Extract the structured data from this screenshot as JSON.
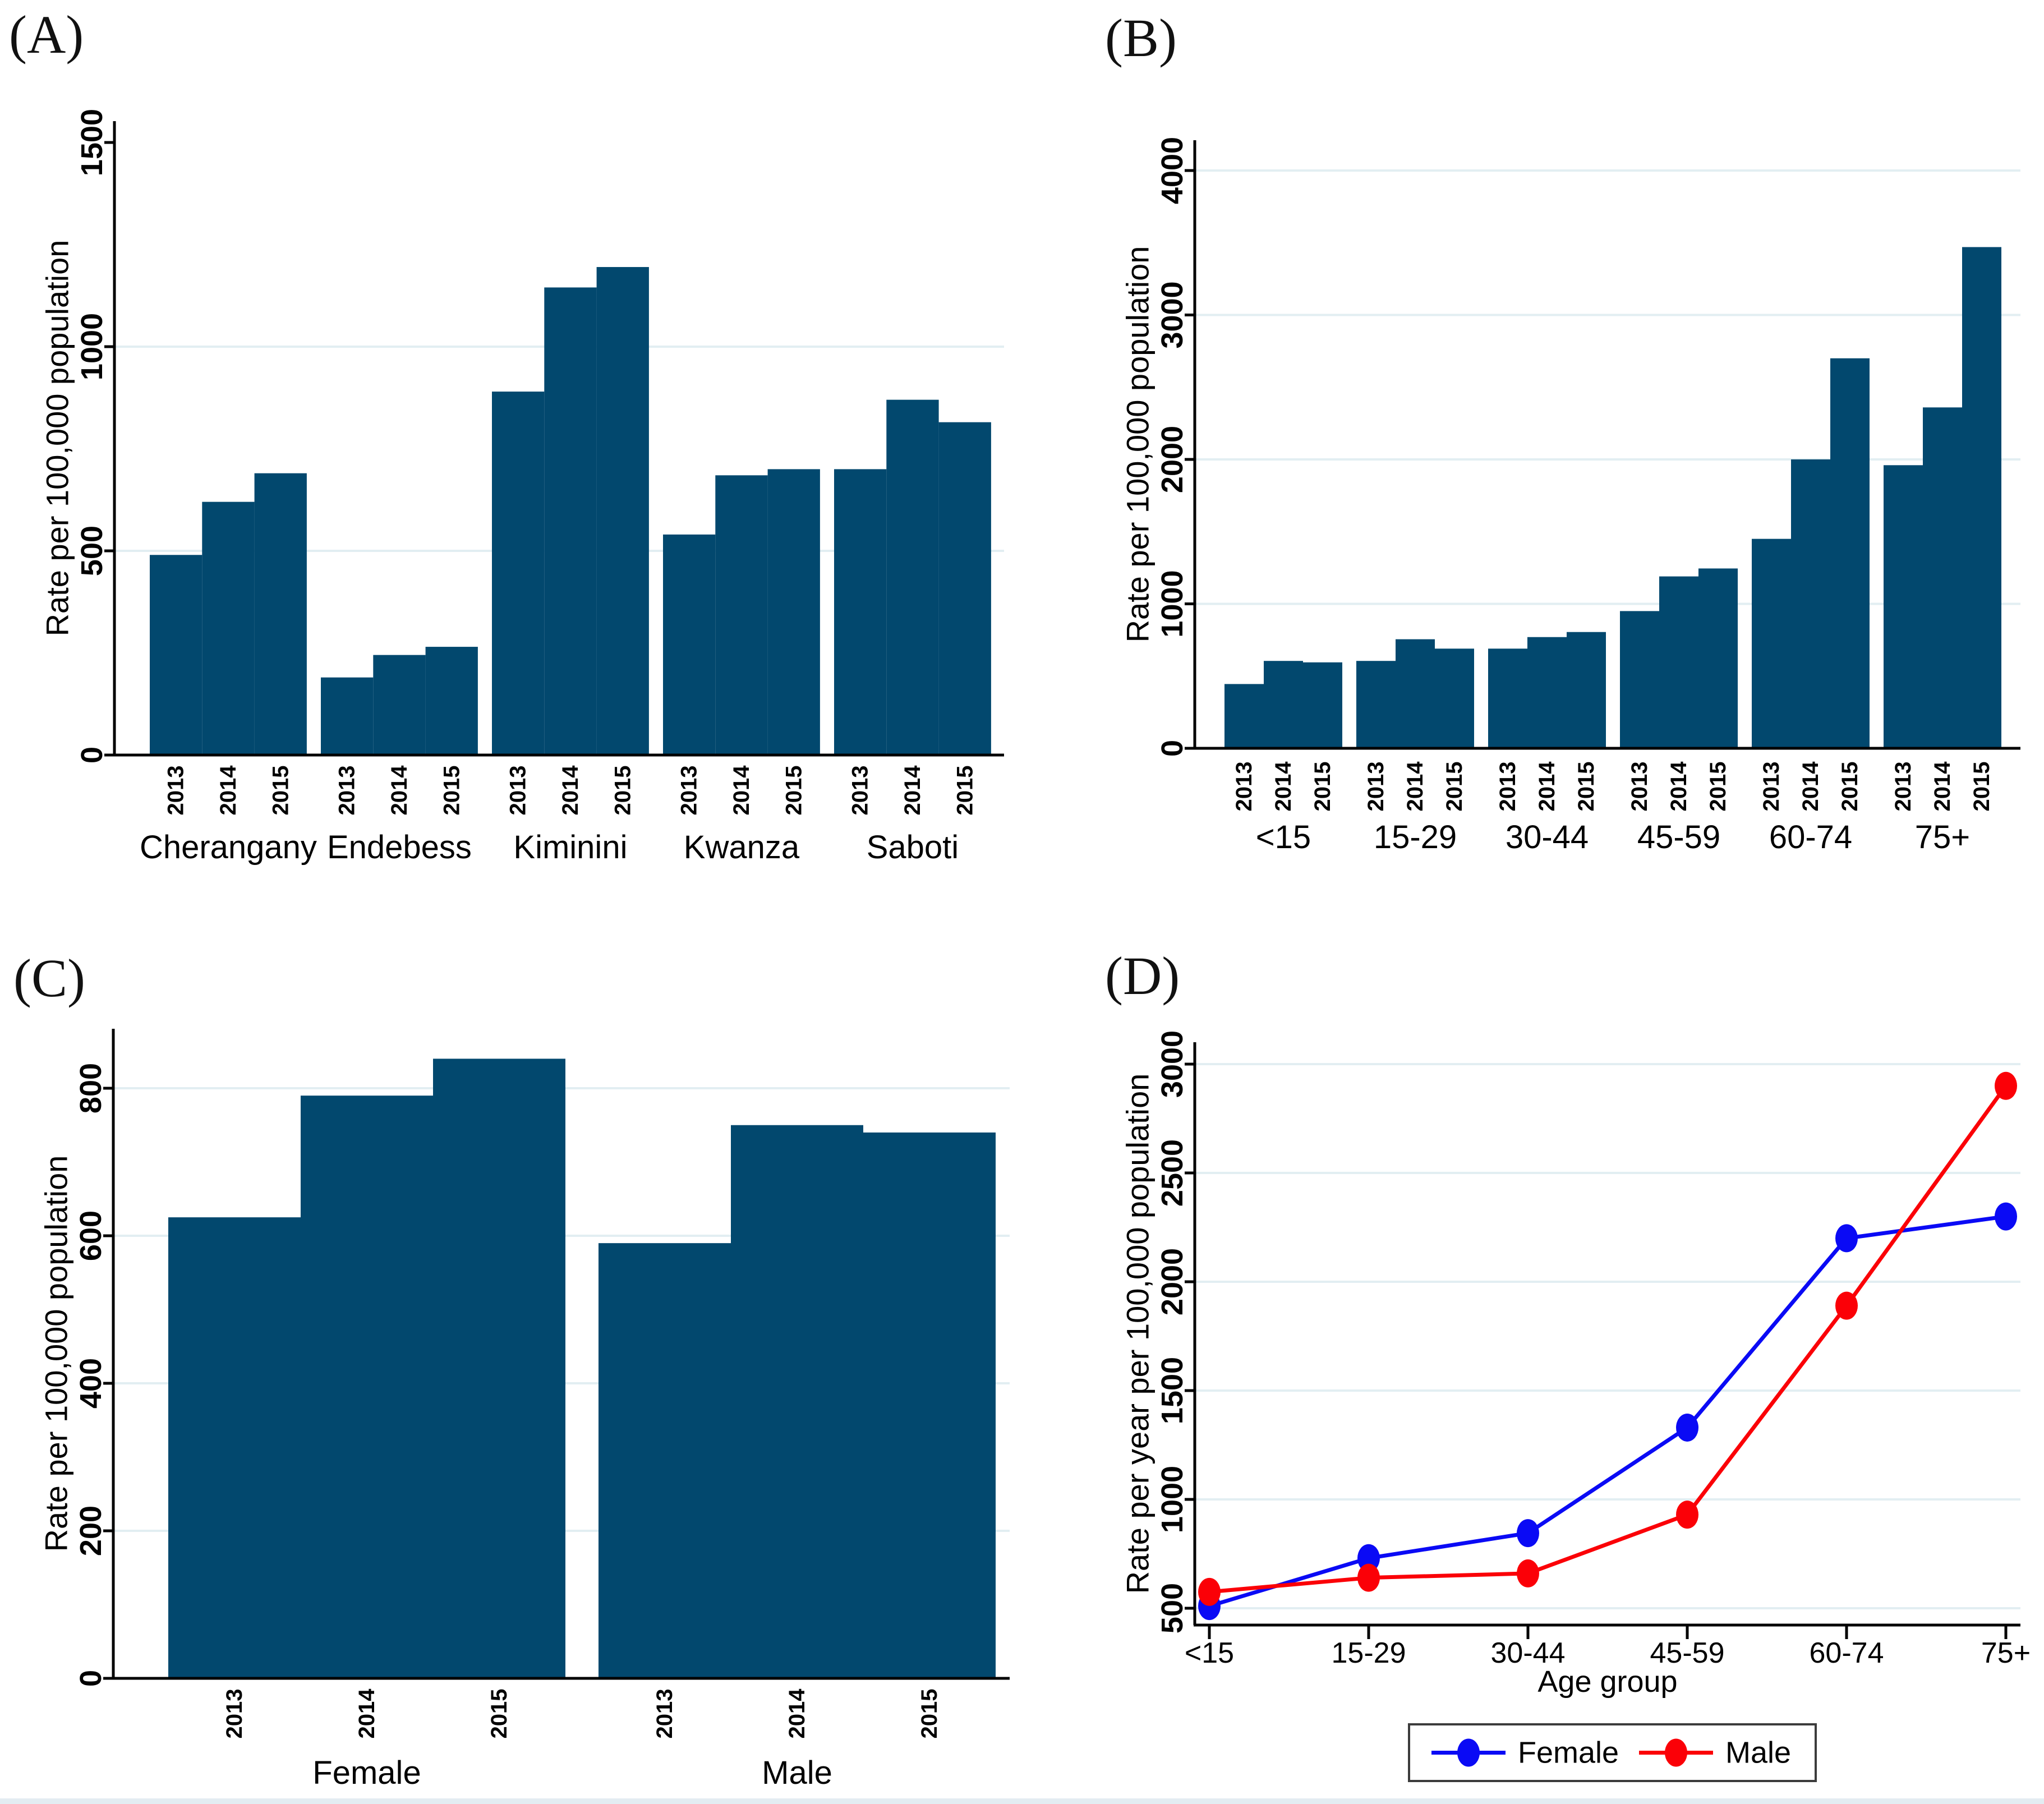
{
  "figure": {
    "colors": {
      "bar": "#02486e",
      "grid": "#e2eef2",
      "axis": "#000000",
      "female_line": "#0a0af5",
      "male_line": "#fb0007",
      "legend_border": "#3c3c3c",
      "bottom_edge": "#e3ecf2",
      "background": "#ffffff",
      "text": "#000000"
    }
  },
  "chart_data": [
    {
      "panel": "A",
      "title": "(A)",
      "type": "bar",
      "xlabel": "",
      "ylabel": "Rate per 100,000 population",
      "ylim": [
        0,
        1550
      ],
      "yticks": [
        0,
        500,
        1000,
        1500
      ],
      "gridlines": [
        500,
        1000
      ],
      "grid": true,
      "legend_position": "none",
      "years": [
        "2013",
        "2014",
        "2015"
      ],
      "categories": [
        "Cherangany",
        "Endebess",
        "Kiminini",
        "Kwanza",
        "Saboti"
      ],
      "series": [
        {
          "name": "Cherangany",
          "values": [
            490,
            620,
            690
          ]
        },
        {
          "name": "Endebess",
          "values": [
            190,
            245,
            265
          ]
        },
        {
          "name": "Kiminini",
          "values": [
            890,
            1145,
            1195
          ]
        },
        {
          "name": "Kwanza",
          "values": [
            540,
            685,
            700
          ]
        },
        {
          "name": "Saboti",
          "values": [
            700,
            870,
            815
          ]
        }
      ]
    },
    {
      "panel": "B",
      "title": "(B)",
      "type": "bar",
      "xlabel": "",
      "ylabel": "Rate per 100,000 population",
      "ylim": [
        0,
        4210
      ],
      "yticks": [
        0,
        1000,
        2000,
        3000,
        4000
      ],
      "gridlines": [
        1000,
        2000,
        3000,
        4000
      ],
      "grid": true,
      "legend_position": "none",
      "years": [
        "2013",
        "2014",
        "2015"
      ],
      "categories": [
        "<15",
        "15-29",
        "30-44",
        "45-59",
        "60-74",
        "75+"
      ],
      "series": [
        {
          "name": "<15",
          "values": [
            445,
            605,
            595
          ]
        },
        {
          "name": "15-29",
          "values": [
            605,
            755,
            690
          ]
        },
        {
          "name": "30-44",
          "values": [
            690,
            770,
            805
          ]
        },
        {
          "name": "45-59",
          "values": [
            950,
            1190,
            1245
          ]
        },
        {
          "name": "60-74",
          "values": [
            1450,
            2000,
            2700
          ]
        },
        {
          "name": "75+",
          "values": [
            1960,
            2360,
            3470
          ]
        }
      ]
    },
    {
      "panel": "C",
      "title": "(C)",
      "type": "bar",
      "xlabel": "",
      "ylabel": "Rate per 100,000 population",
      "ylim": [
        0,
        880
      ],
      "yticks": [
        0,
        200,
        400,
        600,
        800
      ],
      "gridlines": [
        200,
        400,
        600,
        800
      ],
      "grid": true,
      "legend_position": "none",
      "years": [
        "2013",
        "2014",
        "2015"
      ],
      "categories": [
        "Female",
        "Male"
      ],
      "series": [
        {
          "name": "Female",
          "values": [
            625,
            790,
            840
          ]
        },
        {
          "name": "Male",
          "values": [
            590,
            750,
            740
          ]
        }
      ]
    },
    {
      "panel": "D",
      "title": "(D)",
      "type": "line",
      "xlabel": "Age group",
      "ylabel": "Rate per year per 100,000 population",
      "ylim": [
        500,
        3100
      ],
      "yticks": [
        500,
        1000,
        1500,
        2000,
        2500,
        3000
      ],
      "gridlines": [
        500,
        1000,
        1500,
        2000,
        2500,
        3000
      ],
      "grid": true,
      "legend_position": "bottom",
      "categories": [
        "<15",
        "15-29",
        "30-44",
        "45-59",
        "60-74",
        "75+"
      ],
      "series": [
        {
          "name": "Female",
          "color_key": "female_line",
          "values": [
            510,
            730,
            845,
            1330,
            2200,
            2300
          ]
        },
        {
          "name": "Male",
          "color_key": "male_line",
          "values": [
            575,
            640,
            660,
            930,
            1890,
            2900
          ]
        }
      ]
    }
  ]
}
